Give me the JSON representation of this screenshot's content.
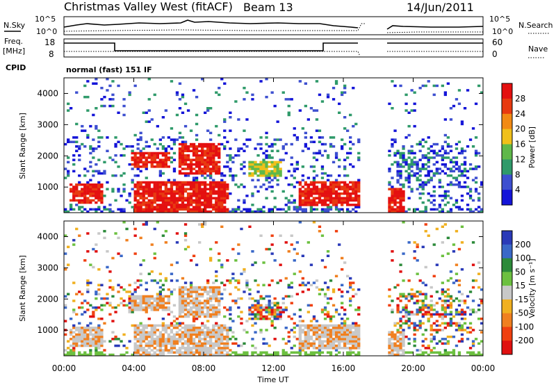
{
  "header": {
    "site": "Christmas Valley West (fitACF)",
    "beam": "Beam 13",
    "date": "14/Jun/2011"
  },
  "panels": {
    "nsky": {
      "left_label": "N.Sky",
      "right_label": "N.Search",
      "ticks": [
        "10^5",
        "10^0"
      ]
    },
    "freq": {
      "left_label_1": "Freq.",
      "left_label_2": "[MHz]",
      "left_ticks": [
        "18",
        "8"
      ],
      "right_label": "Nave",
      "right_ticks": [
        "60",
        "0"
      ]
    },
    "cpid": {
      "label": "CPID",
      "value": "normal (fast) 151 IF"
    }
  },
  "chart_data": [
    {
      "type": "heatmap",
      "name": "power",
      "xlabel": "Time UT",
      "ylabel": "Slant Range [km]",
      "x_ticks": [
        "00:00",
        "04:00",
        "08:00",
        "12:00",
        "16:00",
        "20:00",
        "00:00"
      ],
      "y_ticks": [
        1000,
        2000,
        3000,
        4000
      ],
      "xlim": [
        0,
        24
      ],
      "ylim": [
        180,
        4500
      ],
      "colorbar": {
        "label": "Power [dB]",
        "ticks": [
          "4",
          "8",
          "12",
          "16",
          "20",
          "24",
          "28"
        ],
        "colors": [
          "#1414d8",
          "#3d4fd0",
          "#2f9a6a",
          "#5fb84a",
          "#f0c01a",
          "#f28a14",
          "#e83a10",
          "#e41010"
        ]
      },
      "data_gap_hours": [
        17.0,
        18.5
      ],
      "features": [
        {
          "t0": 0.3,
          "t1": 2.2,
          "r0": 450,
          "r1": 1150,
          "level": "high"
        },
        {
          "t0": 3.8,
          "t1": 6.0,
          "r0": 1600,
          "r1": 2100,
          "level": "high"
        },
        {
          "t0": 4.0,
          "t1": 9.5,
          "r0": 180,
          "r1": 1200,
          "level": "high"
        },
        {
          "t0": 6.5,
          "t1": 9.0,
          "r0": 1400,
          "r1": 2400,
          "level": "high"
        },
        {
          "t0": 10.5,
          "t1": 12.5,
          "r0": 1300,
          "r1": 1800,
          "level": "mid"
        },
        {
          "t0": 13.5,
          "t1": 17.0,
          "r0": 400,
          "r1": 1200,
          "level": "high"
        },
        {
          "t0": 18.5,
          "t1": 19.5,
          "r0": 180,
          "r1": 1000,
          "level": "high"
        }
      ]
    },
    {
      "type": "heatmap",
      "name": "velocity",
      "xlabel": "Time UT",
      "ylabel": "Slant Range [km]",
      "x_ticks": [
        "00:00",
        "04:00",
        "08:00",
        "12:00",
        "16:00",
        "20:00",
        "00:00"
      ],
      "y_ticks": [
        1000,
        2000,
        3000,
        4000
      ],
      "xlim": [
        0,
        24
      ],
      "ylim": [
        180,
        4500
      ],
      "colorbar": {
        "label": "Velocity [m s⁻¹]",
        "ticks": [
          "200",
          "100",
          "50",
          "15",
          "-15",
          "-50",
          "-100",
          "-200"
        ],
        "colors": [
          "#2a3ab8",
          "#3a68c8",
          "#2c8a3a",
          "#6cc040",
          "#c8c8c8",
          "#f0b020",
          "#f08020",
          "#f04010",
          "#e01010"
        ]
      },
      "data_gap_hours": [
        17.0,
        18.5
      ]
    }
  ]
}
